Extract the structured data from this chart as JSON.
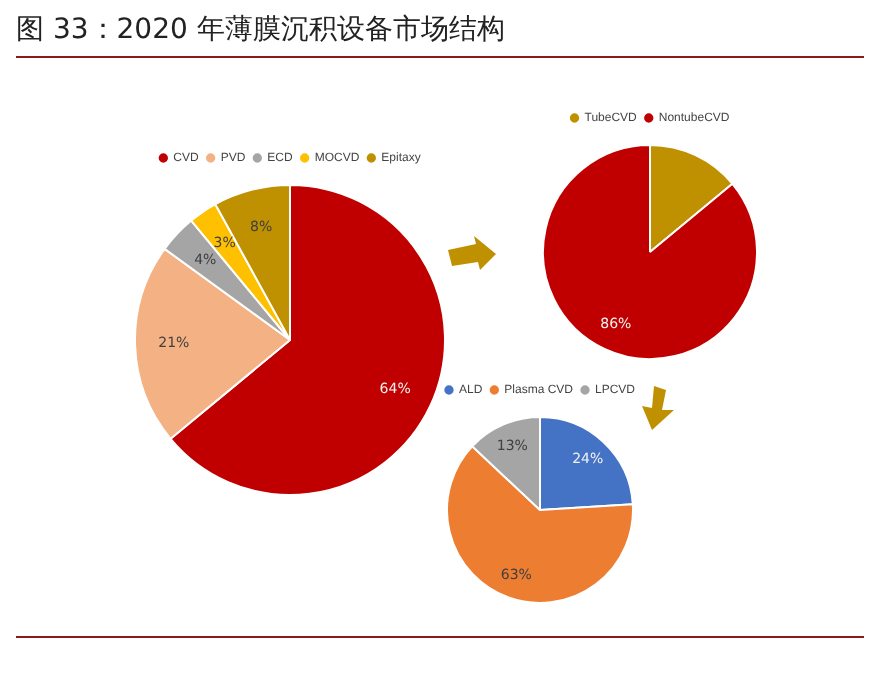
{
  "chart_data": [
    {
      "type": "pie",
      "title": "图 33：2020 年薄膜沉积设备市场结构",
      "categories": [
        "CVD",
        "PVD",
        "ECD",
        "MOCVD",
        "Epitaxy"
      ],
      "values": [
        64,
        21,
        4,
        3,
        8
      ],
      "colors": [
        "#c00000",
        "#f4b183",
        "#a5a5a5",
        "#ffc000",
        "#bf9000"
      ],
      "value_labels": [
        "64%",
        "21%",
        "4%",
        "3%",
        "8%"
      ],
      "legend": "top"
    },
    {
      "type": "pie",
      "categories": [
        "TubeCVD",
        "NontubeCVD"
      ],
      "values": [
        14,
        86
      ],
      "colors": [
        "#bf9000",
        "#c00000"
      ],
      "value_labels": [
        null,
        "86%"
      ],
      "legend": "top"
    },
    {
      "type": "pie",
      "categories": [
        "ALD",
        "Plasma CVD",
        "LPCVD"
      ],
      "values": [
        24,
        63,
        13
      ],
      "colors": [
        "#4472c4",
        "#ed7d31",
        "#a5a5a5"
      ],
      "value_labels": [
        "24%",
        "63%",
        "13%"
      ],
      "legend": "top"
    }
  ]
}
